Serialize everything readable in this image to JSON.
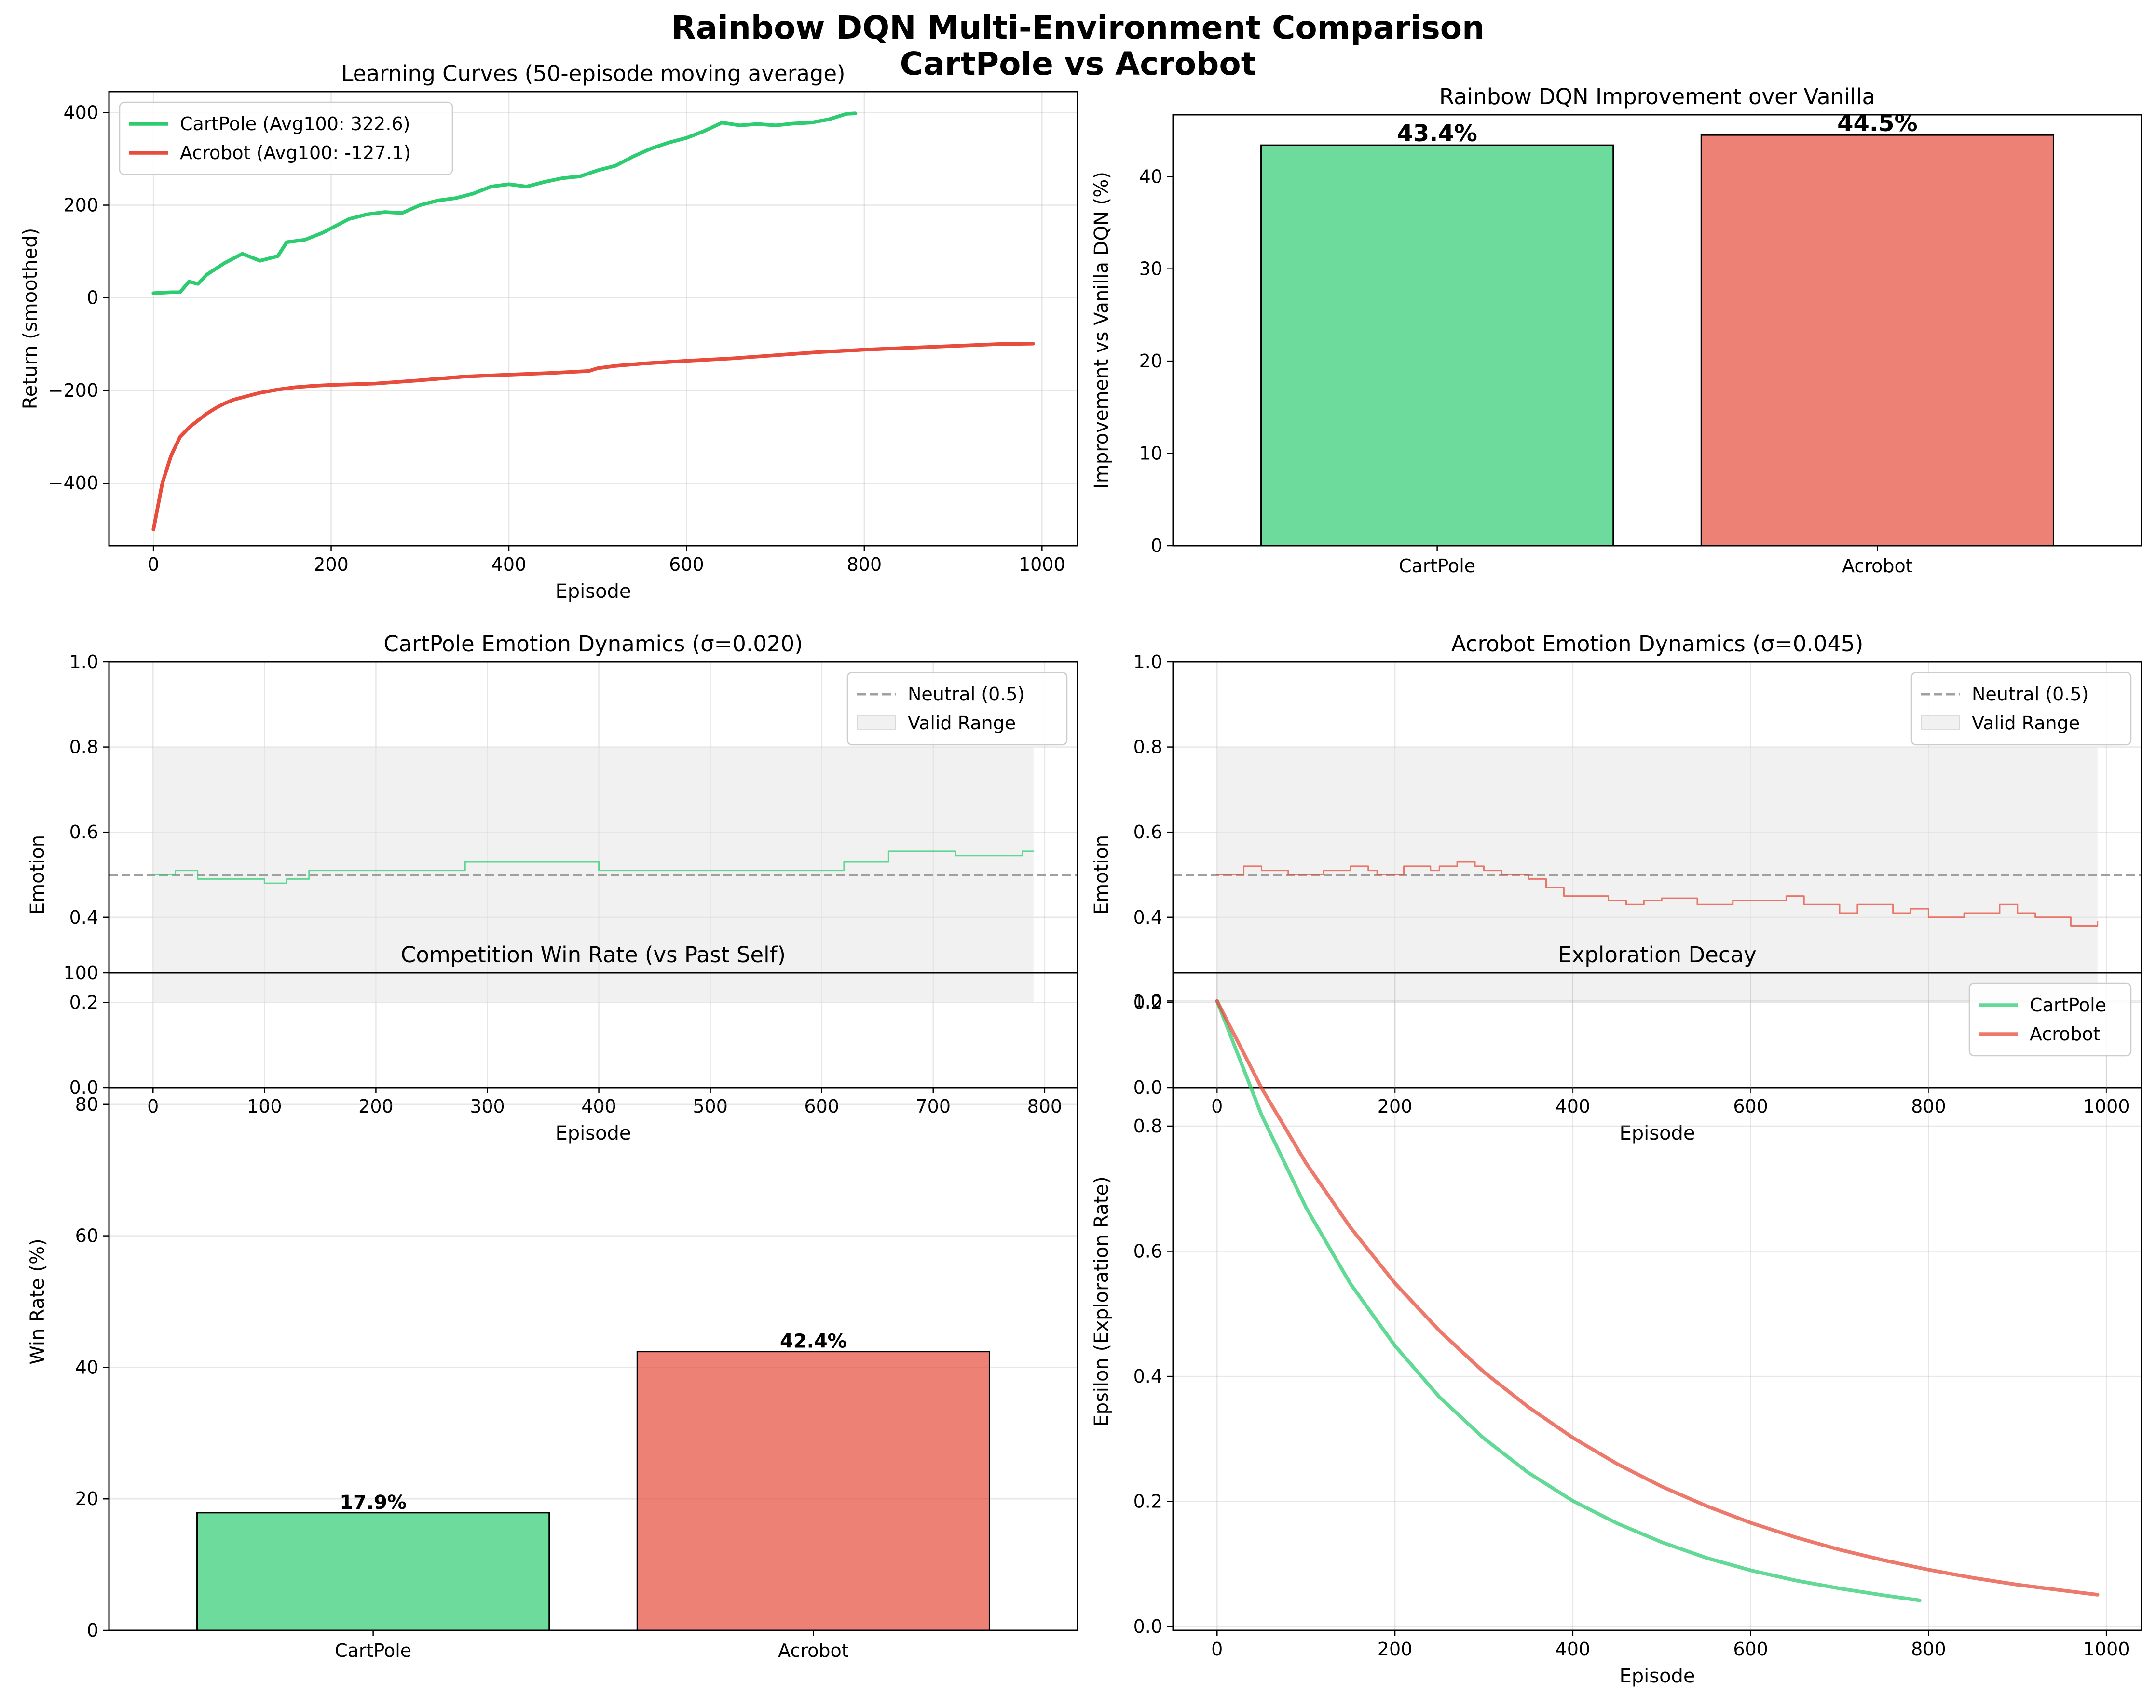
{
  "figure": {
    "title_line1": "Rainbow DQN Multi-Environment Comparison",
    "title_line2": "CartPole vs Acrobot"
  },
  "colors": {
    "cartpole": "#2ecc71",
    "acrobot": "#e74c3c",
    "neutral": "#a0a0a0",
    "band": "#e6e6e6",
    "bar_edge": "#000000"
  },
  "chart_data": [
    {
      "id": "learning",
      "type": "line",
      "title": "Learning Curves (50-episode moving average)",
      "xlabel": "Episode",
      "ylabel": "Return (smoothed)",
      "xlim": [
        -50,
        1040
      ],
      "ylim": [
        -535,
        445
      ],
      "xticks": [
        0,
        200,
        400,
        600,
        800,
        1000
      ],
      "yticks": [
        -400,
        -200,
        0,
        200,
        400
      ],
      "ytick_labels": [
        "−400",
        "−200",
        "0",
        "200",
        "400"
      ],
      "grid": true,
      "legend_position": "upper-left",
      "series": [
        {
          "name": "CartPole (Avg100: 322.6)",
          "color": "cartpole",
          "x": [
            0,
            20,
            30,
            40,
            50,
            60,
            80,
            100,
            120,
            140,
            150,
            170,
            190,
            200,
            220,
            240,
            260,
            280,
            300,
            320,
            340,
            360,
            380,
            400,
            420,
            440,
            460,
            480,
            500,
            520,
            540,
            560,
            580,
            600,
            620,
            640,
            660,
            680,
            700,
            720,
            740,
            760,
            780,
            790
          ],
          "y": [
            10,
            12,
            12,
            35,
            30,
            50,
            75,
            95,
            80,
            90,
            120,
            125,
            140,
            150,
            170,
            180,
            185,
            183,
            200,
            210,
            215,
            225,
            240,
            245,
            240,
            250,
            258,
            262,
            275,
            285,
            305,
            322,
            335,
            345,
            360,
            378,
            372,
            375,
            372,
            376,
            378,
            385,
            397,
            398
          ]
        },
        {
          "name": "Acrobot (Avg100: -127.1)",
          "color": "acrobot",
          "x": [
            0,
            5,
            10,
            20,
            30,
            40,
            50,
            60,
            70,
            80,
            90,
            100,
            120,
            140,
            160,
            180,
            200,
            250,
            300,
            350,
            400,
            450,
            490,
            500,
            520,
            550,
            600,
            650,
            700,
            750,
            800,
            850,
            900,
            950,
            990
          ],
          "y": [
            -500,
            -450,
            -400,
            -340,
            -300,
            -280,
            -265,
            -250,
            -238,
            -228,
            -220,
            -215,
            -205,
            -198,
            -193,
            -190,
            -188,
            -185,
            -178,
            -170,
            -166,
            -162,
            -158,
            -152,
            -147,
            -142,
            -136,
            -131,
            -124,
            -117,
            -112,
            -108,
            -104,
            -100,
            -99
          ]
        }
      ]
    },
    {
      "id": "improvement",
      "type": "bar",
      "title": "Rainbow DQN Improvement over Vanilla",
      "xlabel": "",
      "ylabel": "Improvement vs Vanilla DQN (%)",
      "categories": [
        "CartPole",
        "Acrobot"
      ],
      "values": [
        43.4,
        44.5
      ],
      "value_labels": [
        "43.4%",
        "44.5%"
      ],
      "bar_colors": [
        "cartpole",
        "acrobot"
      ],
      "ylim": [
        0,
        46.7
      ],
      "yticks": [
        0,
        10,
        20,
        30,
        40
      ],
      "grid": false,
      "baseline_dashed": true
    },
    {
      "id": "cp_emotion",
      "type": "line",
      "title": "CartPole Emotion Dynamics (σ=0.020)",
      "xlabel": "Episode",
      "ylabel": "Emotion",
      "xlim": [
        -39.5,
        829.5
      ],
      "ylim": [
        0,
        1.0
      ],
      "xticks": [
        0,
        100,
        200,
        300,
        400,
        500,
        600,
        700,
        800
      ],
      "yticks": [
        0.0,
        0.2,
        0.4,
        0.6,
        0.8,
        1.0
      ],
      "ytick_labels": [
        "0.0",
        "0.2",
        "0.4",
        "0.6",
        "0.8",
        "1.0"
      ],
      "grid": true,
      "legend_position": "upper-right",
      "band": {
        "from": 0.2,
        "to": 0.8,
        "x0": 0,
        "x1": 790,
        "name": "Valid Range"
      },
      "hline": {
        "y": 0.5,
        "name": "Neutral (0.5)"
      },
      "series": [
        {
          "name": "",
          "color": "cartpole",
          "step": true,
          "x": [
            0,
            10,
            20,
            40,
            60,
            80,
            100,
            110,
            120,
            140,
            160,
            200,
            260,
            270,
            280,
            300,
            340,
            390,
            400,
            440,
            500,
            600,
            610,
            620,
            640,
            650,
            660,
            700,
            710,
            720,
            760,
            770,
            780,
            790
          ],
          "y": [
            0.5,
            0.5,
            0.51,
            0.49,
            0.49,
            0.49,
            0.48,
            0.48,
            0.49,
            0.51,
            0.51,
            0.51,
            0.51,
            0.51,
            0.53,
            0.53,
            0.53,
            0.53,
            0.51,
            0.51,
            0.51,
            0.51,
            0.51,
            0.53,
            0.53,
            0.53,
            0.555,
            0.555,
            0.555,
            0.545,
            0.545,
            0.545,
            0.555,
            0.555
          ]
        }
      ]
    },
    {
      "id": "ac_emotion",
      "type": "line",
      "title": "Acrobot Emotion Dynamics (σ=0.045)",
      "xlabel": "Episode",
      "ylabel": "Emotion",
      "xlim": [
        -49.5,
        1039.5
      ],
      "ylim": [
        0,
        1.0
      ],
      "xticks": [
        0,
        200,
        400,
        600,
        800,
        1000
      ],
      "yticks": [
        0.0,
        0.2,
        0.4,
        0.6,
        0.8,
        1.0
      ],
      "ytick_labels": [
        "0.0",
        "0.2",
        "0.4",
        "0.6",
        "0.8",
        "1.0"
      ],
      "grid": true,
      "legend_position": "upper-right",
      "band": {
        "from": 0.2,
        "to": 0.8,
        "x0": 0,
        "x1": 990,
        "name": "Valid Range"
      },
      "hline": {
        "y": 0.5,
        "name": "Neutral (0.5)"
      },
      "series": [
        {
          "name": "",
          "color": "acrobot",
          "step": true,
          "x": [
            0,
            20,
            30,
            50,
            80,
            100,
            120,
            150,
            170,
            180,
            200,
            210,
            220,
            240,
            250,
            260,
            270,
            290,
            300,
            320,
            330,
            350,
            370,
            390,
            420,
            440,
            460,
            480,
            500,
            520,
            540,
            560,
            580,
            600,
            620,
            640,
            660,
            680,
            700,
            710,
            720,
            740,
            760,
            780,
            800,
            820,
            840,
            860,
            880,
            900,
            920,
            940,
            960,
            980,
            990
          ],
          "y": [
            0.5,
            0.5,
            0.52,
            0.51,
            0.5,
            0.5,
            0.51,
            0.52,
            0.51,
            0.5,
            0.5,
            0.52,
            0.52,
            0.51,
            0.52,
            0.52,
            0.53,
            0.52,
            0.51,
            0.5,
            0.5,
            0.49,
            0.47,
            0.45,
            0.45,
            0.44,
            0.43,
            0.44,
            0.445,
            0.445,
            0.43,
            0.43,
            0.44,
            0.44,
            0.44,
            0.45,
            0.43,
            0.43,
            0.41,
            0.41,
            0.43,
            0.43,
            0.41,
            0.42,
            0.4,
            0.4,
            0.41,
            0.41,
            0.43,
            0.41,
            0.4,
            0.4,
            0.38,
            0.38,
            0.39
          ]
        }
      ]
    },
    {
      "id": "winrate",
      "type": "bar",
      "title": "Competition Win Rate (vs Past Self)",
      "xlabel": "",
      "ylabel": "Win Rate (%)",
      "categories": [
        "CartPole",
        "Acrobot"
      ],
      "values": [
        17.9,
        42.4
      ],
      "value_labels": [
        "17.9%",
        "42.4%"
      ],
      "bar_colors": [
        "cartpole",
        "acrobot"
      ],
      "ylim": [
        0,
        100
      ],
      "yticks": [
        0,
        20,
        40,
        60,
        80,
        100
      ],
      "grid": true
    },
    {
      "id": "epsilon",
      "type": "line",
      "title": "Exploration Decay",
      "xlabel": "Episode",
      "ylabel": "Epsilon (Exploration Rate)",
      "xlim": [
        -49.5,
        1039.5
      ],
      "ylim": [
        -0.006,
        1.045
      ],
      "xticks": [
        0,
        200,
        400,
        600,
        800,
        1000
      ],
      "yticks": [
        0.0,
        0.2,
        0.4,
        0.6,
        0.8,
        1.0
      ],
      "ytick_labels": [
        "0.0",
        "0.2",
        "0.4",
        "0.6",
        "0.8",
        "1.0"
      ],
      "grid": true,
      "legend_position": "upper-right",
      "series": [
        {
          "name": "CartPole",
          "color": "cartpole",
          "x": [
            0,
            50,
            100,
            150,
            200,
            250,
            300,
            350,
            400,
            450,
            500,
            550,
            600,
            650,
            700,
            750,
            790
          ],
          "y": [
            1.0,
            0.818,
            0.67,
            0.548,
            0.449,
            0.367,
            0.301,
            0.246,
            0.201,
            0.165,
            0.135,
            0.11,
            0.09,
            0.074,
            0.061,
            0.05,
            0.042
          ]
        },
        {
          "name": "Acrobot",
          "color": "acrobot",
          "x": [
            0,
            50,
            100,
            150,
            200,
            250,
            300,
            350,
            400,
            450,
            500,
            550,
            600,
            650,
            700,
            750,
            800,
            850,
            900,
            950,
            990
          ],
          "y": [
            1.0,
            0.861,
            0.741,
            0.638,
            0.549,
            0.473,
            0.407,
            0.351,
            0.302,
            0.26,
            0.224,
            0.193,
            0.166,
            0.143,
            0.123,
            0.106,
            0.091,
            0.078,
            0.067,
            0.058,
            0.051
          ]
        }
      ]
    }
  ]
}
